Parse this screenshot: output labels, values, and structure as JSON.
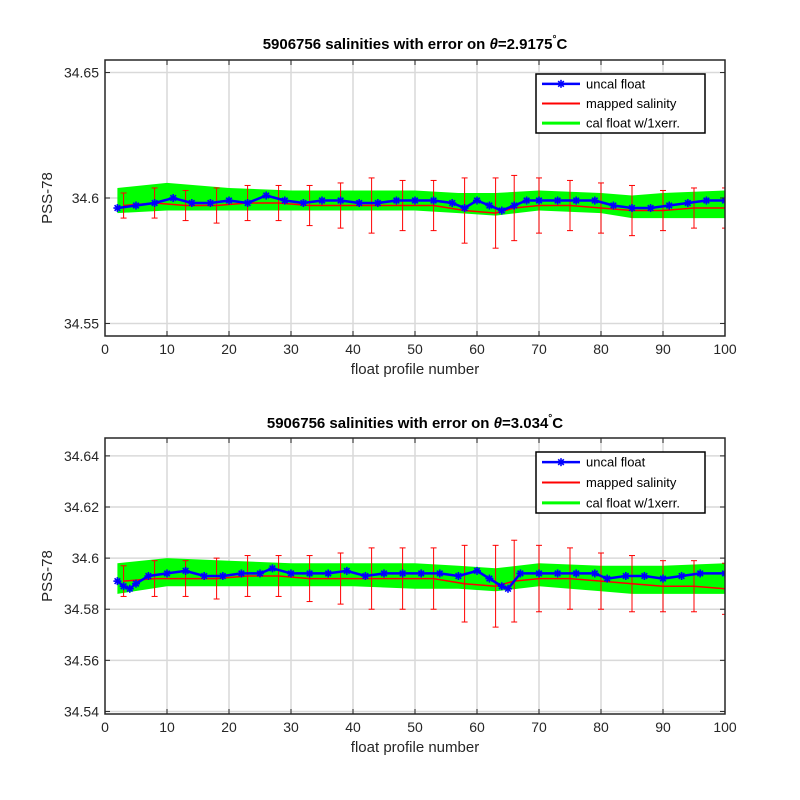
{
  "chart_data": [
    {
      "type": "line",
      "title": "5906756 salinities with error on θ=2.9175°C",
      "title_parts": {
        "prefix": "5906756 salinities with error on ",
        "theta": "θ",
        "value": "=2.9175",
        "degree": "°",
        "unit": "C"
      },
      "xlabel": "float profile number",
      "ylabel": "PSS-78",
      "xlim": [
        0,
        100
      ],
      "ylim": [
        34.545,
        34.655
      ],
      "xticks": [
        0,
        10,
        20,
        30,
        40,
        50,
        60,
        70,
        80,
        90,
        100
      ],
      "yticks": [
        34.55,
        34.6,
        34.65
      ],
      "ytick_labels": [
        "34.55",
        "34.6",
        "34.65"
      ],
      "grid": true,
      "legend_position": "top-right",
      "series": [
        {
          "name": "uncal float",
          "color": "#0000ff",
          "marker": "asterisk",
          "x": [
            2,
            5,
            8,
            11,
            14,
            17,
            20,
            23,
            26,
            29,
            32,
            35,
            38,
            41,
            44,
            47,
            50,
            53,
            56,
            58,
            60,
            62,
            64,
            66,
            68,
            70,
            73,
            76,
            79,
            82,
            85,
            88,
            91,
            94,
            97,
            100
          ],
          "y": [
            34.596,
            34.597,
            34.598,
            34.6,
            34.598,
            34.598,
            34.599,
            34.598,
            34.601,
            34.599,
            34.598,
            34.599,
            34.599,
            34.598,
            34.598,
            34.599,
            34.599,
            34.599,
            34.598,
            34.596,
            34.599,
            34.597,
            34.595,
            34.597,
            34.599,
            34.599,
            34.599,
            34.599,
            34.599,
            34.597,
            34.596,
            34.596,
            34.597,
            34.598,
            34.599,
            34.599
          ]
        },
        {
          "name": "mapped salinity",
          "color": "#ff0000",
          "x": [
            3,
            8,
            13,
            18,
            23,
            28,
            33,
            38,
            43,
            48,
            53,
            58,
            63,
            66,
            70,
            75,
            80,
            85,
            90,
            95,
            100
          ],
          "y": [
            34.597,
            34.598,
            34.597,
            34.597,
            34.598,
            34.598,
            34.597,
            34.597,
            34.597,
            34.597,
            34.597,
            34.595,
            34.594,
            34.596,
            34.597,
            34.597,
            34.596,
            34.595,
            34.595,
            34.596,
            34.596
          ],
          "err": [
            0.005,
            0.006,
            0.006,
            0.007,
            0.007,
            0.007,
            0.008,
            0.009,
            0.011,
            0.01,
            0.01,
            0.013,
            0.014,
            0.013,
            0.011,
            0.01,
            0.01,
            0.01,
            0.008,
            0.008,
            0.008
          ]
        },
        {
          "name": "cal float w/1xerr.",
          "color": "#00ff00",
          "x": [
            2,
            10,
            20,
            30,
            40,
            50,
            57,
            63,
            70,
            80,
            85,
            90,
            100
          ],
          "lower": [
            34.594,
            34.595,
            34.595,
            34.595,
            34.595,
            34.595,
            34.594,
            34.593,
            34.595,
            34.594,
            34.592,
            34.592,
            34.592
          ],
          "upper": [
            34.604,
            34.606,
            34.604,
            34.603,
            34.603,
            34.603,
            34.602,
            34.602,
            34.603,
            34.602,
            34.601,
            34.602,
            34.603
          ]
        }
      ]
    },
    {
      "type": "line",
      "title": "5906756 salinities with error on θ=3.034°C",
      "title_parts": {
        "prefix": "5906756 salinities with error on ",
        "theta": "θ",
        "value": "=3.034",
        "degree": "°",
        "unit": "C"
      },
      "xlabel": "float profile number",
      "ylabel": "PSS-78",
      "xlim": [
        0,
        100
      ],
      "ylim": [
        34.539,
        34.647
      ],
      "xticks": [
        0,
        10,
        20,
        30,
        40,
        50,
        60,
        70,
        80,
        90,
        100
      ],
      "yticks": [
        34.54,
        34.56,
        34.58,
        34.6,
        34.62,
        34.64
      ],
      "ytick_labels": [
        "34.54",
        "34.56",
        "34.58",
        "34.6",
        "34.62",
        "34.64"
      ],
      "grid": true,
      "legend_position": "top-right",
      "series": [
        {
          "name": "uncal float",
          "color": "#0000ff",
          "marker": "asterisk",
          "x": [
            2,
            3,
            4,
            5,
            7,
            10,
            13,
            16,
            19,
            22,
            25,
            27,
            30,
            33,
            36,
            39,
            42,
            45,
            48,
            51,
            54,
            57,
            60,
            62,
            64,
            65,
            67,
            70,
            73,
            76,
            79,
            81,
            84,
            87,
            90,
            93,
            96,
            100
          ],
          "y": [
            34.591,
            34.589,
            34.588,
            34.59,
            34.593,
            34.594,
            34.595,
            34.593,
            34.593,
            34.594,
            34.594,
            34.596,
            34.594,
            34.594,
            34.594,
            34.595,
            34.593,
            34.594,
            34.594,
            34.594,
            34.594,
            34.593,
            34.595,
            34.592,
            34.589,
            34.588,
            34.594,
            34.594,
            34.594,
            34.594,
            34.594,
            34.592,
            34.593,
            34.593,
            34.592,
            34.593,
            34.594,
            34.594
          ]
        },
        {
          "name": "mapped salinity",
          "color": "#ff0000",
          "x": [
            3,
            8,
            13,
            18,
            23,
            28,
            33,
            38,
            43,
            48,
            53,
            58,
            63,
            66,
            70,
            75,
            80,
            85,
            90,
            95,
            100
          ],
          "y": [
            34.591,
            34.592,
            34.592,
            34.592,
            34.593,
            34.593,
            34.592,
            34.592,
            34.592,
            34.592,
            34.592,
            34.59,
            34.589,
            34.591,
            34.592,
            34.592,
            34.591,
            34.59,
            34.589,
            34.589,
            34.588
          ],
          "err": [
            0.006,
            0.007,
            0.007,
            0.008,
            0.008,
            0.008,
            0.009,
            0.01,
            0.012,
            0.012,
            0.012,
            0.015,
            0.016,
            0.016,
            0.013,
            0.012,
            0.011,
            0.011,
            0.01,
            0.01,
            0.01
          ]
        },
        {
          "name": "cal float w/1xerr.",
          "color": "#00ff00",
          "x": [
            2,
            10,
            20,
            30,
            40,
            50,
            57,
            63,
            70,
            80,
            85,
            90,
            100
          ],
          "lower": [
            34.586,
            34.589,
            34.589,
            34.589,
            34.589,
            34.588,
            34.588,
            34.587,
            34.589,
            34.587,
            34.586,
            34.586,
            34.586
          ],
          "upper": [
            34.598,
            34.6,
            34.599,
            34.598,
            34.598,
            34.598,
            34.597,
            34.596,
            34.598,
            34.597,
            34.597,
            34.597,
            34.598
          ]
        }
      ]
    }
  ]
}
